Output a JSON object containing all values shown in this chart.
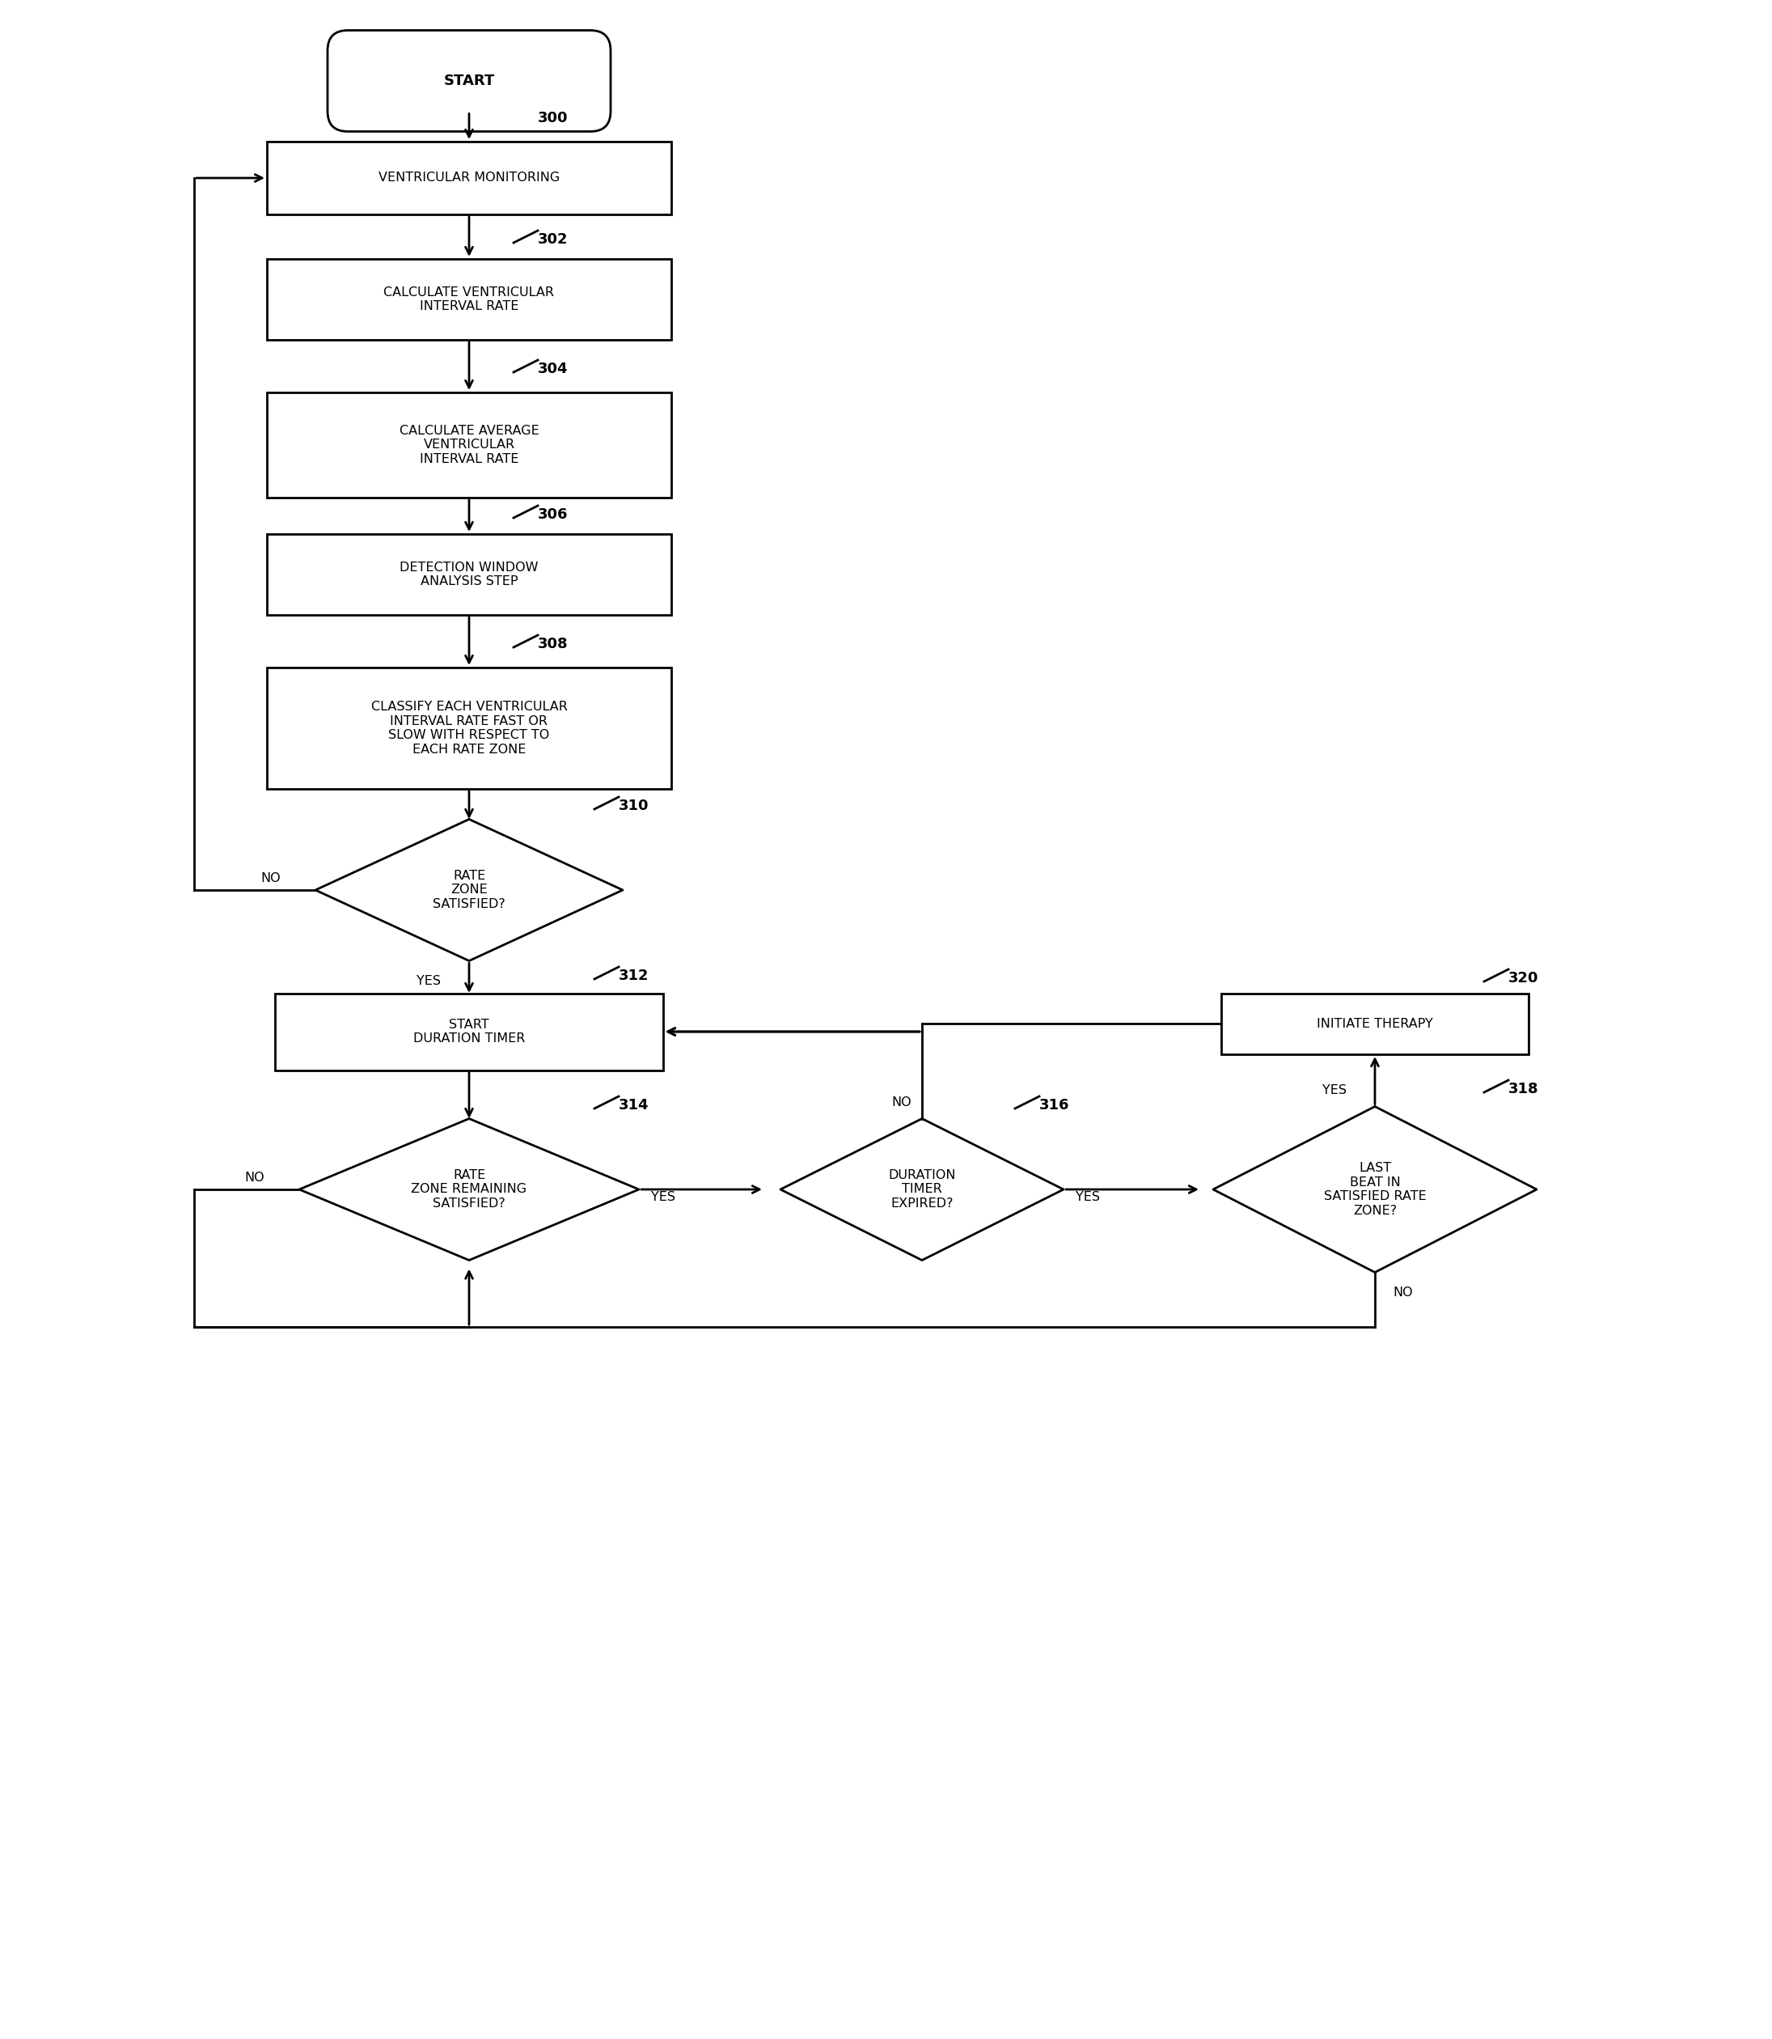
{
  "bg_color": "#ffffff",
  "line_color": "#000000",
  "text_color": "#000000",
  "fig_w": 21.91,
  "fig_h": 25.2,
  "start_text": "START",
  "boxes": [
    {
      "id": "vm",
      "label": "VENTRICULAR MONITORING",
      "tag": "300"
    },
    {
      "id": "cvir",
      "label": "CALCULATE VENTRICULAR\nINTERVAL RATE",
      "tag": "302"
    },
    {
      "id": "cavir",
      "label": "CALCULATE AVERAGE\nVENTRICULAR\nINTERVAL RATE",
      "tag": "304"
    },
    {
      "id": "dwa",
      "label": "DETECTION WINDOW\nANALYSIS STEP",
      "tag": "306"
    },
    {
      "id": "cevir",
      "label": "CLASSIFY EACH VENTRICULAR\nINTERVAL RATE FAST OR\nSLOW WITH RESPECT TO\nEACH RATE ZONE",
      "tag": "308"
    },
    {
      "id": "sdt",
      "label": "START\nDURATION TIMER",
      "tag": "312"
    },
    {
      "id": "it",
      "label": "INITIATE THERAPY",
      "tag": "320"
    }
  ],
  "diamonds": [
    {
      "id": "rzs",
      "label": "RATE\nZONE\nSATISFIED?",
      "tag": "310"
    },
    {
      "id": "rzrs",
      "label": "RATE\nZONE REMAINING\nSATISFIED?",
      "tag": "314"
    },
    {
      "id": "dte",
      "label": "DURATION\nTIMER\nEXPIRED?",
      "tag": "316"
    },
    {
      "id": "lbsrz",
      "label": "LAST\nBEAT IN\nSATISFIED RATE\nZONE?",
      "tag": "318"
    }
  ]
}
